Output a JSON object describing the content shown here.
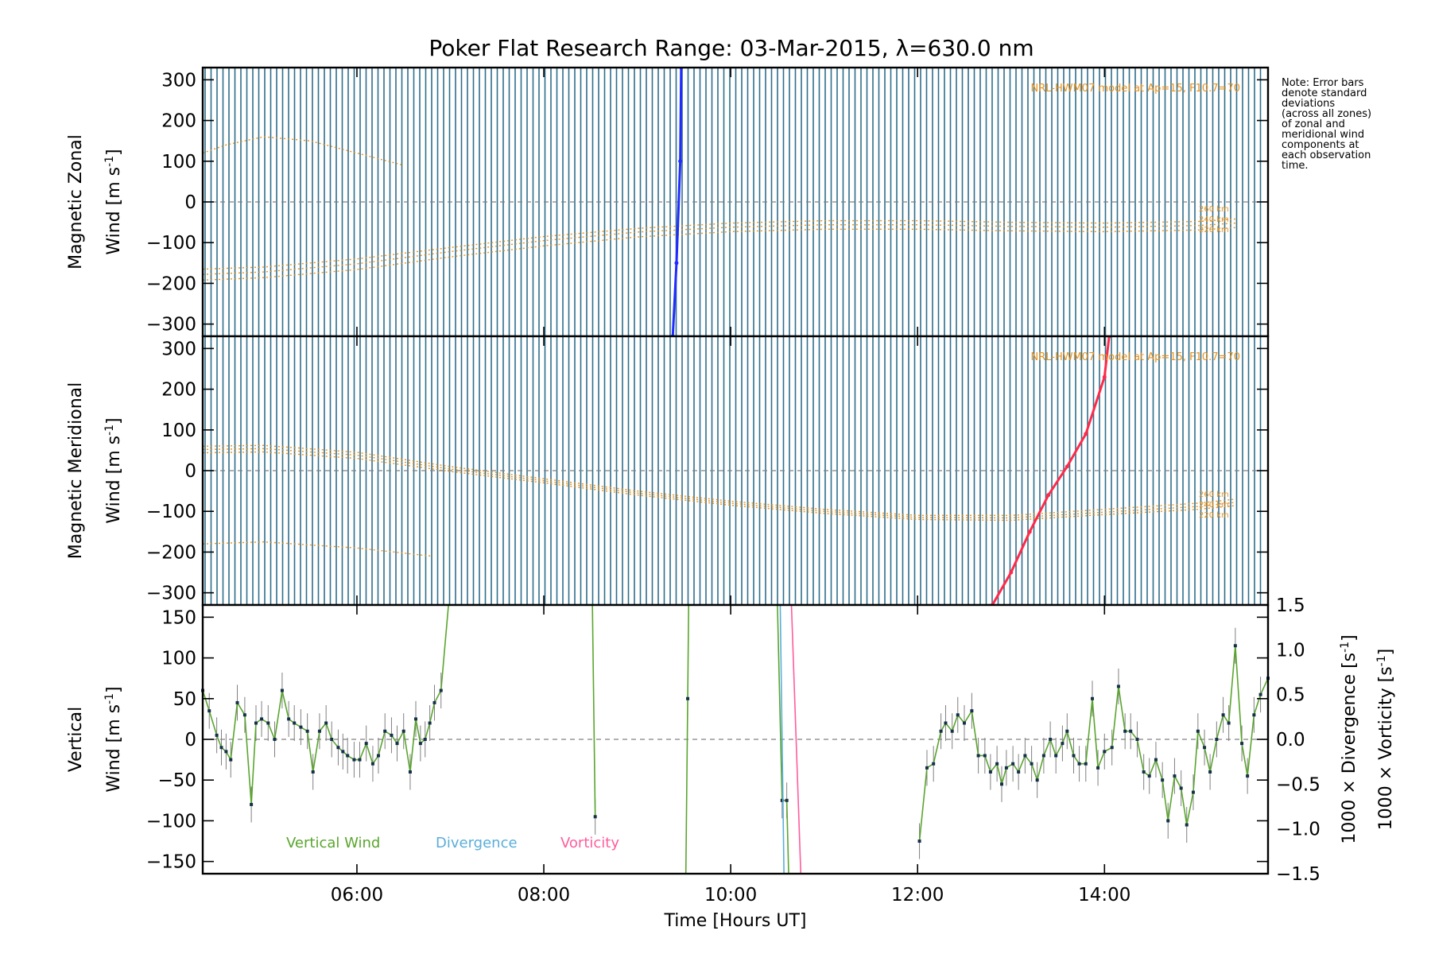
{
  "title": "Poker Flat Research Range: 03-Mar-2015, λ=630.0 nm",
  "note_lines": [
    "Note: Error bars",
    "denote standard",
    "deviations",
    "(across all zones)",
    "of zonal and",
    "meridional wind",
    "components at",
    "each observation",
    "time."
  ],
  "colors": {
    "axis": "#000000",
    "grid_lines": "#2e6e8c",
    "model": "#e8921e",
    "zonal_trace": "#1f2cff",
    "meridional_trace": "#ff2a4a",
    "vertical": "#5aa52e",
    "divergence": "#5aaed8",
    "vorticity": "#ff5c9c",
    "zero_line": "#808080",
    "errorbar": "#808080"
  },
  "chart_data": [
    {
      "type": "line",
      "panel": "zonal",
      "ylabel_1": "Magnetic Zonal",
      "ylabel_2": "Wind [m s",
      "ylabel_sup": "-1",
      "ylabel_end": "]",
      "ylim": [
        -330,
        330
      ],
      "yticks": [
        300,
        200,
        100,
        0,
        -100,
        -200,
        -300
      ],
      "ytick_labels": [
        "300",
        "200",
        "100",
        "0",
        "−100",
        "−200",
        "−300"
      ],
      "xlim": [
        4.35,
        15.75
      ],
      "model_label": "NRL-HWM07 model at Ap=15, F10.7=70",
      "altitude_labels": [
        "260 km",
        "240 km",
        "220 km"
      ],
      "zero_line": true,
      "trace": {
        "x": [
          9.38,
          9.42,
          9.46,
          9.47
        ],
        "y": [
          -330,
          -150,
          100,
          330
        ]
      },
      "model_series": [
        {
          "name": "260 km",
          "x": [
            4.35,
            5.0,
            6.0,
            7.0,
            8.0,
            9.0,
            10.0,
            11.0,
            12.0,
            13.0,
            14.0,
            15.0,
            15.4
          ],
          "y": [
            -165,
            -160,
            -140,
            -112,
            -85,
            -65,
            -52,
            -46,
            -46,
            -50,
            -52,
            -48,
            -42
          ]
        },
        {
          "name": "240 km",
          "x": [
            4.35,
            5.0,
            6.0,
            7.0,
            8.0,
            9.0,
            10.0,
            11.0,
            12.0,
            13.0,
            14.0,
            15.0,
            15.4
          ],
          "y": [
            -178,
            -172,
            -152,
            -122,
            -95,
            -74,
            -62,
            -56,
            -56,
            -60,
            -62,
            -58,
            -52
          ]
        },
        {
          "name": "220 km",
          "x": [
            4.35,
            5.0,
            6.0,
            7.0,
            8.0,
            9.0,
            10.0,
            11.0,
            12.0,
            13.0,
            14.0,
            15.0,
            15.4
          ],
          "y": [
            -192,
            -186,
            -166,
            -135,
            -108,
            -86,
            -73,
            -67,
            -67,
            -71,
            -73,
            -69,
            -63
          ]
        },
        {
          "name": "",
          "x": [
            4.35,
            4.6,
            5.0,
            5.5,
            6.0,
            6.5
          ],
          "y": [
            120,
            140,
            160,
            150,
            120,
            90
          ]
        }
      ]
    },
    {
      "type": "line",
      "panel": "meridional",
      "ylabel_1": "Magnetic Meridional",
      "ylabel_2": "Wind [m s",
      "ylabel_sup": "-1",
      "ylabel_end": "]",
      "ylim": [
        -330,
        330
      ],
      "yticks": [
        300,
        200,
        100,
        0,
        -100,
        -200,
        -300
      ],
      "ytick_labels": [
        "300",
        "200",
        "100",
        "0",
        "−100",
        "−200",
        "−300"
      ],
      "xlim": [
        4.35,
        15.75
      ],
      "model_label": "NRL-HWM07 model at Ap=15, F10.7=70",
      "altitude_labels": [
        "260 km",
        "240 km",
        "220 km"
      ],
      "zero_line": true,
      "trace": {
        "x": [
          12.8,
          13.0,
          13.2,
          13.4,
          13.6,
          13.8,
          14.0,
          14.05
        ],
        "y": [
          -330,
          -250,
          -150,
          -60,
          10,
          90,
          230,
          330
        ]
      },
      "model_series": [
        {
          "name": "260 km",
          "x": [
            4.35,
            5.0,
            6.0,
            7.0,
            8.0,
            9.0,
            10.0,
            11.0,
            12.0,
            13.0,
            14.0,
            15.0,
            15.4
          ],
          "y": [
            60,
            62,
            45,
            10,
            -20,
            -50,
            -75,
            -95,
            -110,
            -110,
            -95,
            -80,
            -70
          ]
        },
        {
          "name": "240 km",
          "x": [
            4.35,
            5.0,
            6.0,
            7.0,
            8.0,
            9.0,
            10.0,
            11.0,
            12.0,
            13.0,
            14.0,
            15.0,
            15.4
          ],
          "y": [
            52,
            54,
            38,
            4,
            -25,
            -55,
            -80,
            -100,
            -115,
            -116,
            -102,
            -88,
            -78
          ]
        },
        {
          "name": "220 km",
          "x": [
            4.35,
            5.0,
            6.0,
            7.0,
            8.0,
            9.0,
            10.0,
            11.0,
            12.0,
            13.0,
            14.0,
            15.0,
            15.4
          ],
          "y": [
            44,
            46,
            30,
            -2,
            -30,
            -60,
            -85,
            -105,
            -120,
            -122,
            -108,
            -95,
            -86
          ]
        },
        {
          "name": "",
          "x": [
            4.35,
            5.0,
            6.0,
            6.8
          ],
          "y": [
            -180,
            -175,
            -190,
            -210
          ]
        }
      ]
    },
    {
      "type": "line",
      "panel": "vertical",
      "ylabel_1": "Vertical",
      "ylabel_2": "Wind [m s",
      "ylabel_sup": "-1",
      "ylabel_end": "]",
      "ylim": [
        -165,
        165
      ],
      "yticks": [
        150,
        100,
        50,
        0,
        -50,
        -100,
        -150
      ],
      "ytick_labels": [
        "150",
        "100",
        "50",
        "0",
        "−50",
        "−100",
        "−150"
      ],
      "y2lim": [
        -1.5,
        1.5
      ],
      "y2ticks": [
        1.5,
        1.0,
        0.5,
        0.0,
        -0.5,
        -1.0,
        -1.5
      ],
      "y2tick_labels": [
        "1.5",
        "1.0",
        "0.5",
        "0.0",
        "−0.5",
        "−1.0",
        "−1.5"
      ],
      "y2label_div": "1000 × Divergence [s",
      "y2label_vor": "1000 × Vorticity [s",
      "y2label_sup": "-1",
      "y2label_end": "]",
      "xlim": [
        4.35,
        15.75
      ],
      "xticks": [
        6,
        8,
        10,
        12,
        14
      ],
      "xtick_labels": [
        "06:00",
        "08:00",
        "10:00",
        "12:00",
        "14:00"
      ],
      "xlabel": "Time [Hours UT]",
      "zero_line": true,
      "legend": [
        "Vertical Wind",
        "Divergence",
        "Vorticity"
      ],
      "series": [
        {
          "name": "Vertical Wind",
          "segments": [
            {
              "x": [
                4.35,
                4.42,
                4.5,
                4.55,
                4.6,
                4.65,
                4.72,
                4.8,
                4.87,
                4.92,
                4.98,
                5.05,
                5.12,
                5.2,
                5.27,
                5.33,
                5.4,
                5.47,
                5.53,
                5.6,
                5.67,
                5.73,
                5.8,
                5.85,
                5.9,
                5.97,
                6.03,
                6.1,
                6.17,
                6.23,
                6.3,
                6.37,
                6.43,
                6.5,
                6.57,
                6.63,
                6.68,
                6.73,
                6.78,
                6.83,
                6.9,
                6.98
              ],
              "y": [
                60,
                35,
                5,
                -10,
                -15,
                -25,
                45,
                30,
                -80,
                20,
                25,
                20,
                0,
                60,
                25,
                20,
                15,
                10,
                -40,
                10,
                20,
                0,
                -10,
                -15,
                -20,
                -25,
                -25,
                -5,
                -30,
                -20,
                10,
                5,
                -5,
                10,
                -40,
                25,
                -5,
                0,
                20,
                45,
                60,
                165
              ]
            },
            {
              "x": [
                8.52,
                8.55
              ],
              "y": [
                165,
                -95
              ]
            },
            {
              "x": [
                9.52,
                9.54,
                9.55
              ],
              "y": [
                -165,
                50,
                165
              ]
            },
            {
              "x": [
                10.5,
                10.55,
                10.6,
                10.62
              ],
              "y": [
                165,
                -75,
                -75,
                -165
              ]
            },
            {
              "x": [
                12.02,
                12.1,
                12.17,
                12.25,
                12.3,
                12.37,
                12.43,
                12.5,
                12.58,
                12.65,
                12.72,
                12.78,
                12.85,
                12.9,
                12.95,
                13.02,
                13.08,
                13.15,
                13.22,
                13.28,
                13.35,
                13.42,
                13.48,
                13.55,
                13.6,
                13.67,
                13.73,
                13.8,
                13.87,
                13.93,
                14.0,
                14.08,
                14.15,
                14.22,
                14.28,
                14.35,
                14.42,
                14.48,
                14.55,
                14.62,
                14.68,
                14.75,
                14.82,
                14.88,
                14.95,
                15.0,
                15.07,
                15.13,
                15.2,
                15.27,
                15.33,
                15.4,
                15.47,
                15.53,
                15.6,
                15.67,
                15.75
              ],
              "y": [
                -125,
                -35,
                -30,
                10,
                20,
                10,
                30,
                20,
                35,
                -20,
                -20,
                -40,
                -30,
                -55,
                -35,
                -30,
                -40,
                -20,
                -30,
                -50,
                -20,
                0,
                -20,
                -5,
                10,
                -20,
                -30,
                -30,
                50,
                -35,
                -15,
                -10,
                65,
                10,
                10,
                0,
                -40,
                -45,
                -25,
                -50,
                -100,
                -45,
                -60,
                -105,
                -65,
                10,
                -10,
                -40,
                0,
                30,
                20,
                115,
                -5,
                -45,
                30,
                55,
                75
              ]
            }
          ]
        },
        {
          "name": "Divergence",
          "segments": [
            {
              "x": [
                10.53,
                10.55,
                10.57
              ],
              "y": [
                165,
                0,
                -165
              ]
            }
          ]
        },
        {
          "name": "Vorticity",
          "segments": [
            {
              "x": [
                10.65,
                10.7,
                10.75
              ],
              "y": [
                165,
                0,
                -165
              ]
            }
          ]
        }
      ]
    }
  ]
}
